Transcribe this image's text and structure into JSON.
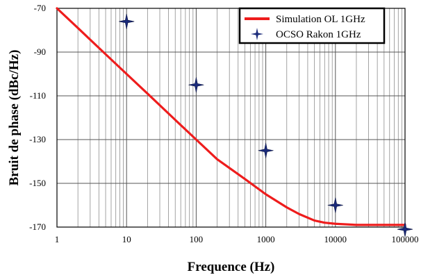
{
  "chart_data": {
    "type": "line",
    "title": "",
    "xlabel": "Frequence (Hz)",
    "ylabel": "Bruit de phase (dBc/Hz)",
    "xscale": "log",
    "xlim": [
      1,
      100000
    ],
    "ylim": [
      -170,
      -70
    ],
    "xticks": [
      1,
      10,
      100,
      1000,
      10000,
      100000
    ],
    "xtick_labels": [
      "1",
      "10",
      "100",
      "1000",
      "10000",
      "100000"
    ],
    "yticks": [
      -70,
      -90,
      -110,
      -130,
      -150,
      -170
    ],
    "ytick_labels": [
      "-70",
      "-90",
      "-110",
      "-130",
      "-150",
      "-170"
    ],
    "grid": true,
    "legend_position": "top-right",
    "series": [
      {
        "name": "Simulation OL 1GHz",
        "kind": "line",
        "color": "#ee1c1c",
        "x": [
          1,
          2,
          5,
          10,
          20,
          50,
          100,
          200,
          500,
          1000,
          2000,
          3000,
          5000,
          7000,
          10000,
          20000,
          50000,
          100000
        ],
        "y": [
          -70,
          -79,
          -91,
          -100,
          -109,
          -121,
          -130,
          -139,
          -148,
          -155,
          -161,
          -164,
          -167,
          -168,
          -168.5,
          -169,
          -169,
          -169
        ]
      },
      {
        "name": "OCSO Rakon 1GHz",
        "kind": "scatter",
        "marker": "star4",
        "color": "#1a2a7a",
        "x": [
          10,
          100,
          1000,
          10000,
          100000
        ],
        "y": [
          -76,
          -105,
          -135,
          -160,
          -171
        ]
      }
    ]
  }
}
